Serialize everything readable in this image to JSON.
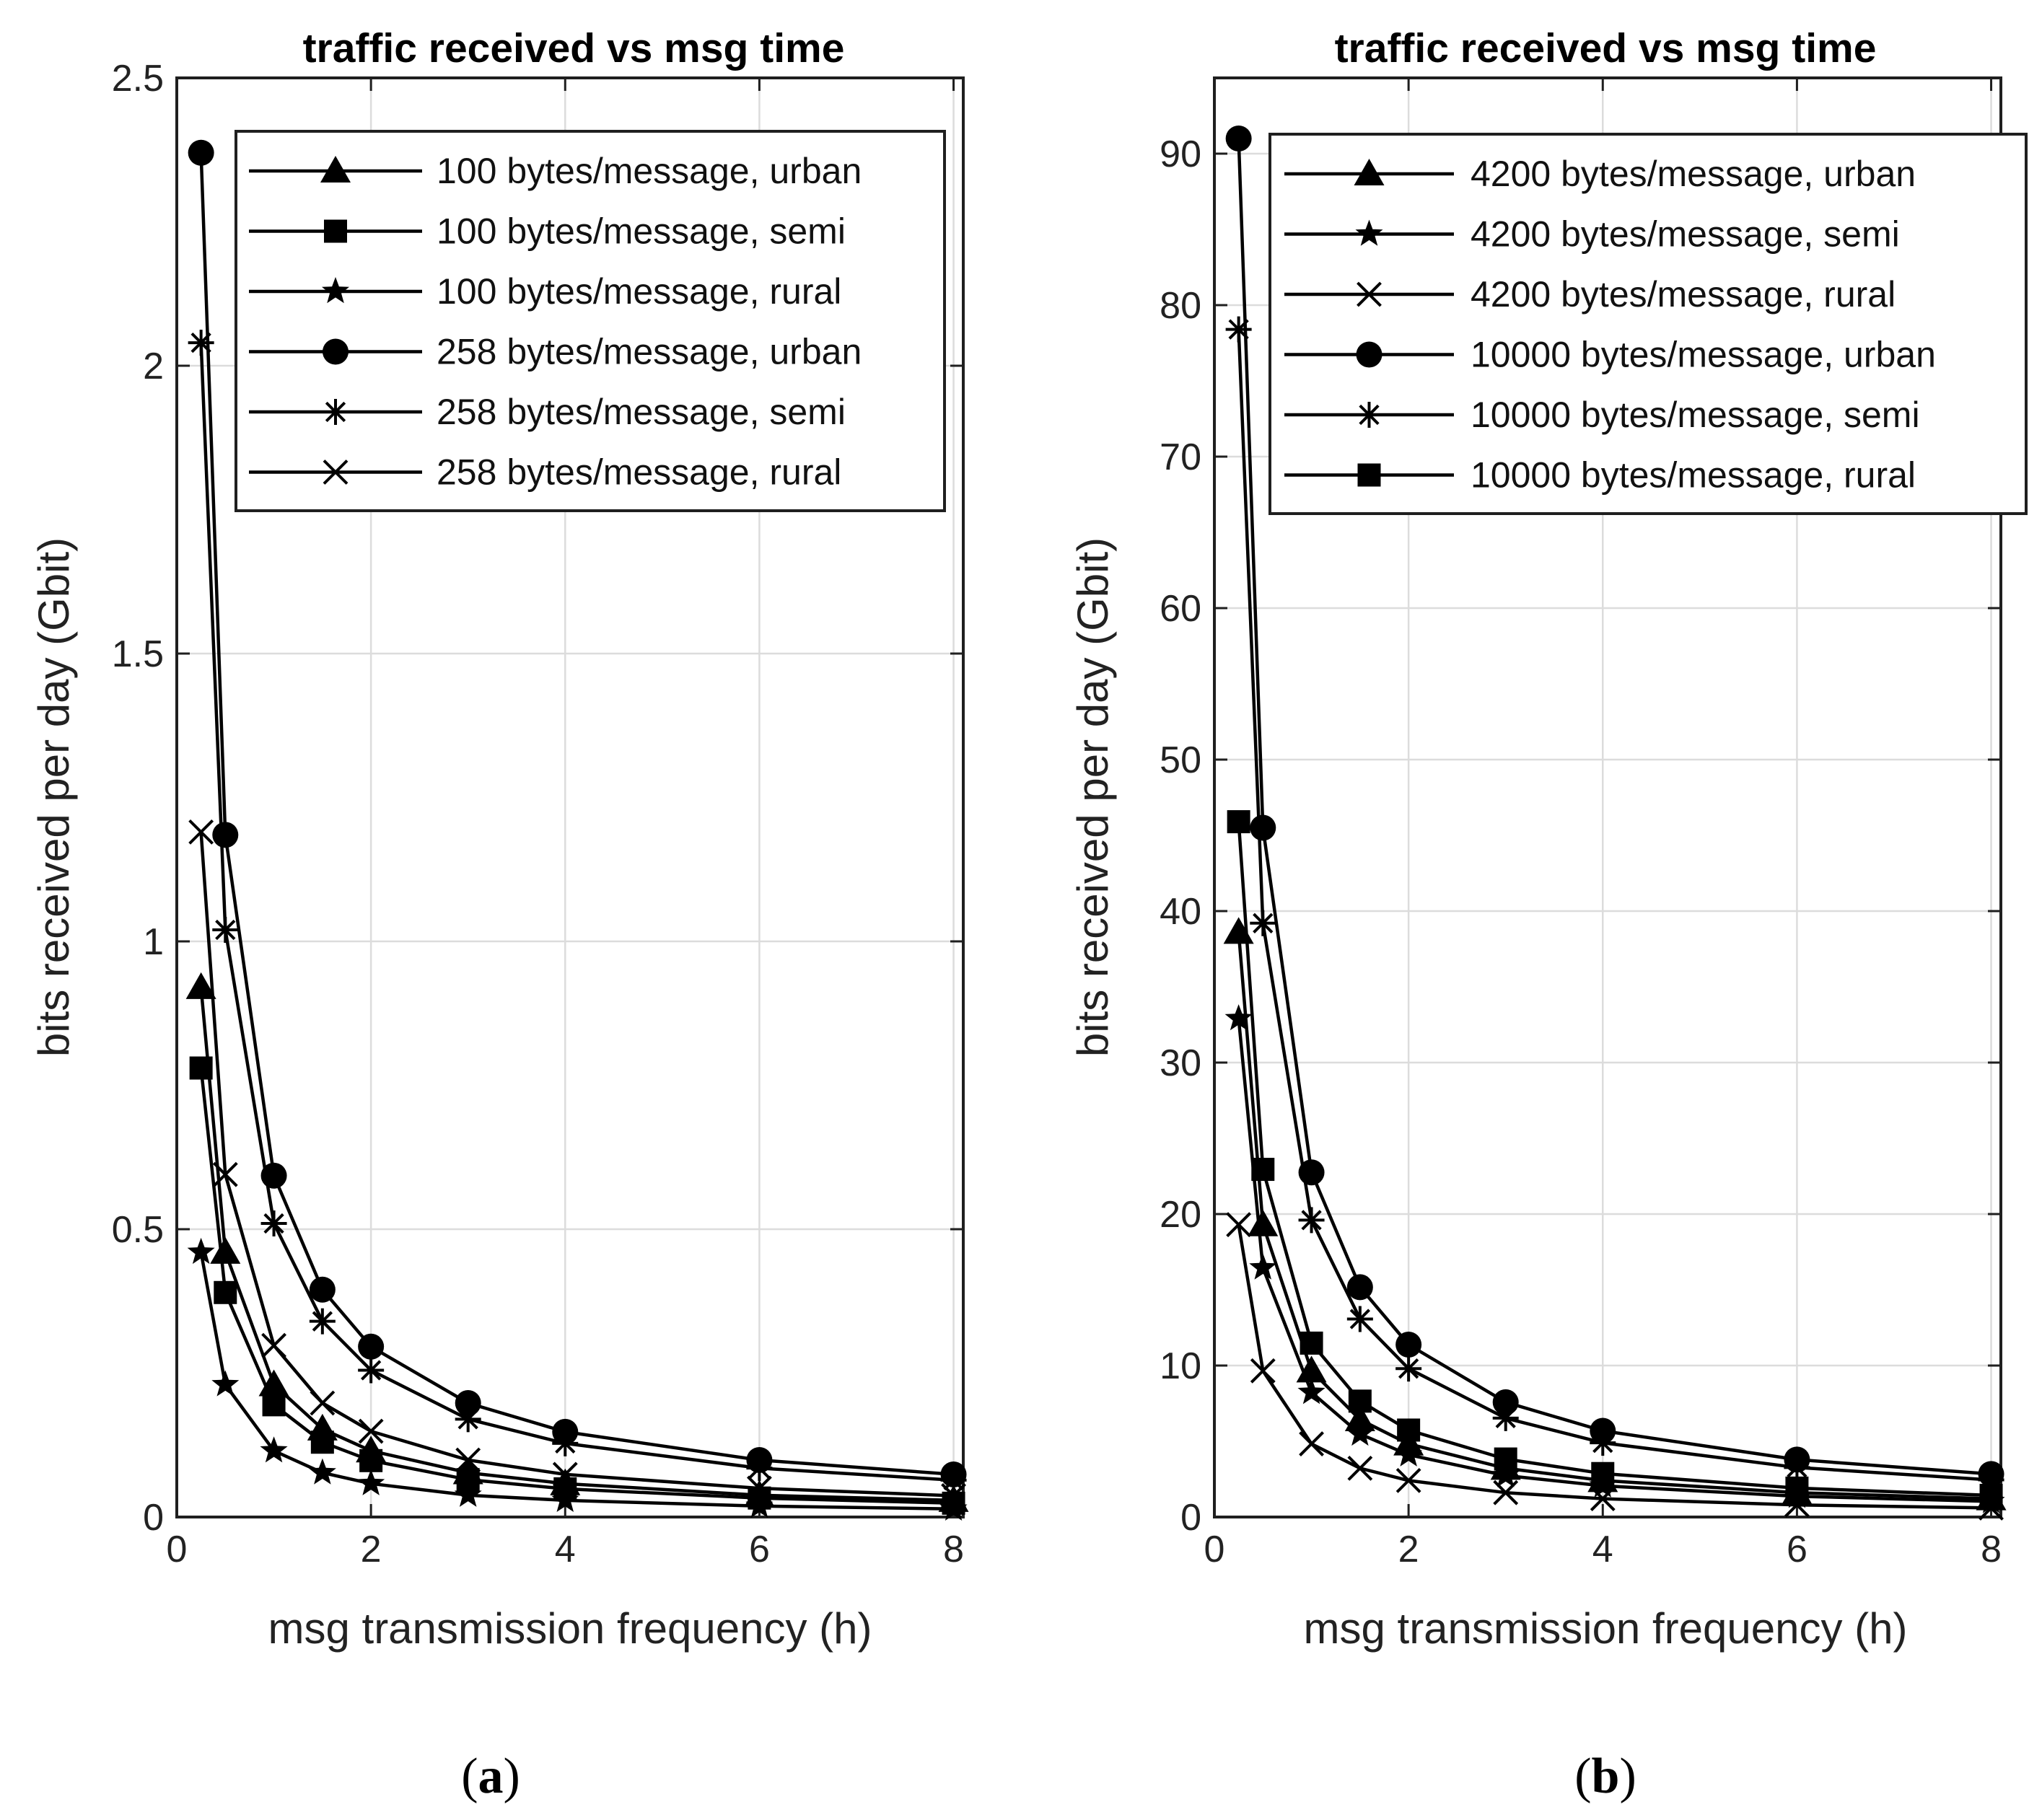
{
  "chart_data": [
    {
      "type": "line",
      "panel_label_open": "(",
      "panel_label_letter": "a",
      "panel_label_close": ")",
      "title": "traffic received vs msg time",
      "xlabel": "msg transmission frequency (h)",
      "ylabel": "bits received per day (Gbit)",
      "xlim": [
        0,
        8.1
      ],
      "ylim": [
        0,
        2.5
      ],
      "xticks": [
        0,
        2,
        4,
        6,
        8
      ],
      "xtick_labels": [
        "0",
        "2",
        "4",
        "6",
        "8"
      ],
      "yticks": [
        0,
        0.5,
        1,
        1.5,
        2,
        2.5
      ],
      "ytick_labels": [
        "0",
        "0.5",
        "1",
        "1.5",
        "2",
        "2.5"
      ],
      "grid": true,
      "legend_position": "top-right",
      "x": [
        0.25,
        0.5,
        1,
        1.5,
        2,
        3,
        4,
        6,
        8
      ],
      "series": [
        {
          "name": "100 bytes/message, urban",
          "marker": "triangle",
          "values": [
            0.92,
            0.46,
            0.23,
            0.153,
            0.115,
            0.077,
            0.058,
            0.038,
            0.029
          ]
        },
        {
          "name": "100 bytes/message, semi",
          "marker": "square",
          "values": [
            0.78,
            0.39,
            0.195,
            0.13,
            0.098,
            0.065,
            0.049,
            0.033,
            0.024
          ]
        },
        {
          "name": "100 bytes/message, rural",
          "marker": "star",
          "values": [
            0.46,
            0.23,
            0.115,
            0.077,
            0.058,
            0.038,
            0.029,
            0.019,
            0.014
          ]
        },
        {
          "name": "258 bytes/message, urban",
          "marker": "circle",
          "values": [
            2.37,
            1.185,
            0.593,
            0.395,
            0.296,
            0.198,
            0.148,
            0.099,
            0.074
          ]
        },
        {
          "name": "258 bytes/message, semi",
          "marker": "asterisk",
          "values": [
            2.04,
            1.02,
            0.51,
            0.34,
            0.255,
            0.17,
            0.128,
            0.085,
            0.064
          ]
        },
        {
          "name": "258 bytes/message, rural",
          "marker": "x",
          "values": [
            1.19,
            0.595,
            0.298,
            0.198,
            0.149,
            0.099,
            0.074,
            0.05,
            0.037
          ]
        }
      ]
    },
    {
      "type": "line",
      "panel_label_open": "(",
      "panel_label_letter": "b",
      "panel_label_close": ")",
      "title": "traffic received vs msg time",
      "xlabel": "msg transmission frequency (h)",
      "ylabel": "bits received per day (Gbit)",
      "xlim": [
        0,
        8.1
      ],
      "ylim": [
        0,
        95
      ],
      "xticks": [
        0,
        2,
        4,
        6,
        8
      ],
      "xtick_labels": [
        "0",
        "2",
        "4",
        "6",
        "8"
      ],
      "yticks": [
        0,
        10,
        20,
        30,
        40,
        50,
        60,
        70,
        80,
        90
      ],
      "ytick_labels": [
        "0",
        "10",
        "20",
        "30",
        "40",
        "50",
        "60",
        "70",
        "80",
        "90"
      ],
      "grid": true,
      "legend_position": "top-right",
      "x": [
        0.25,
        0.5,
        1,
        1.5,
        2,
        3,
        4,
        6,
        8
      ],
      "series": [
        {
          "name": "4200 bytes/message, urban",
          "marker": "triangle",
          "values": [
            38.6,
            19.3,
            9.65,
            6.43,
            4.83,
            3.22,
            2.41,
            1.61,
            1.21
          ]
        },
        {
          "name": "4200 bytes/message, semi",
          "marker": "star",
          "values": [
            32.9,
            16.45,
            8.23,
            5.48,
            4.11,
            2.74,
            2.06,
            1.37,
            1.03
          ]
        },
        {
          "name": "4200 bytes/message, rural",
          "marker": "x",
          "values": [
            19.3,
            9.65,
            4.83,
            3.22,
            2.41,
            1.61,
            1.21,
            0.8,
            0.6
          ]
        },
        {
          "name": "10000 bytes/message, urban",
          "marker": "circle",
          "values": [
            91.0,
            45.5,
            22.75,
            15.17,
            11.38,
            7.58,
            5.69,
            3.79,
            2.84
          ]
        },
        {
          "name": "10000 bytes/message, semi",
          "marker": "asterisk",
          "values": [
            78.4,
            39.2,
            19.6,
            13.07,
            9.8,
            6.53,
            4.9,
            3.27,
            2.45
          ]
        },
        {
          "name": "10000 bytes/message, rural",
          "marker": "square",
          "values": [
            45.9,
            22.95,
            11.48,
            7.65,
            5.74,
            3.83,
            2.87,
            1.91,
            1.43
          ]
        }
      ]
    }
  ]
}
